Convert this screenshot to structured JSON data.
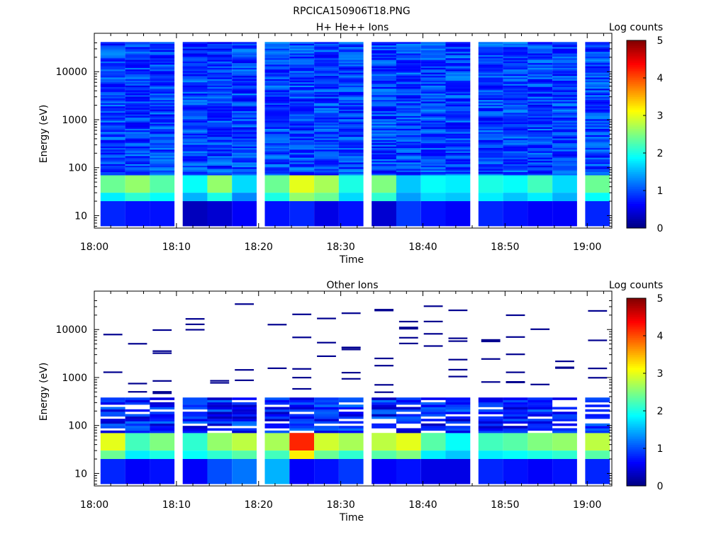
{
  "page_title": "RPCICA150906T18.PNG",
  "chart_data": [
    {
      "type": "heatmap",
      "title": "H+ He++ Ions",
      "xlabel": "Time",
      "ylabel": "Energy (eV)",
      "colorbar_label": "Log counts",
      "yscale": "log",
      "xlim": [
        "18:00",
        "19:03"
      ],
      "ylim": [
        5.5,
        45000
      ],
      "xticks": [
        "18:00",
        "18:10",
        "18:20",
        "18:30",
        "18:40",
        "18:50",
        "19:00"
      ],
      "yticks": [
        "10",
        "100",
        "1000",
        "10000"
      ],
      "colorbar_range": [
        0,
        5
      ],
      "colorbar_ticks": [
        "0",
        "1",
        "2",
        "3",
        "4",
        "5"
      ],
      "time_columns": [
        "18:02",
        "18:05",
        "18:08",
        "18:12",
        "18:15",
        "18:18",
        "18:22",
        "18:25",
        "18:28",
        "18:31",
        "18:35",
        "18:38",
        "18:41",
        "18:44",
        "18:48",
        "18:51",
        "18:54",
        "18:57",
        "19:01"
      ],
      "band_energy_eV": [
        [
          30,
          70
        ],
        [
          20,
          30
        ],
        [
          6,
          20
        ]
      ],
      "low_energy_bands_log_counts": [
        [
          2.4,
          2.6,
          2.3,
          1.9,
          2.6,
          1.7,
          2.4,
          3.0,
          2.7,
          2.0,
          2.5,
          1.6,
          1.9,
          1.8,
          2.0,
          1.9,
          2.2,
          1.7,
          2.4
        ],
        [
          1.8,
          2.1,
          1.9,
          1.5,
          2.0,
          1.3,
          2.0,
          2.6,
          2.4,
          1.7,
          2.1,
          1.4,
          1.7,
          1.6,
          1.8,
          1.6,
          1.8,
          1.5,
          1.9
        ],
        [
          0.8,
          0.7,
          0.7,
          0.3,
          0.4,
          0.6,
          0.7,
          0.8,
          0.5,
          0.7,
          0.4,
          0.9,
          0.7,
          0.6,
          0.8,
          0.7,
          0.6,
          0.6,
          0.8
        ]
      ],
      "background_log_counts": "approx 0.5 to 1.3 above 70 eV"
    },
    {
      "type": "heatmap",
      "title": "Other Ions",
      "xlabel": "Time",
      "ylabel": "Energy (eV)",
      "colorbar_label": "Log counts",
      "yscale": "log",
      "xlim": [
        "18:00",
        "19:03"
      ],
      "ylim": [
        5.5,
        45000
      ],
      "xticks": [
        "18:00",
        "18:10",
        "18:20",
        "18:30",
        "18:40",
        "18:50",
        "19:00"
      ],
      "yticks": [
        "10",
        "100",
        "1000",
        "10000"
      ],
      "colorbar_range": [
        0,
        5
      ],
      "colorbar_ticks": [
        "0",
        "1",
        "2",
        "3",
        "4",
        "5"
      ],
      "time_columns": [
        "18:02",
        "18:05",
        "18:08",
        "18:12",
        "18:15",
        "18:18",
        "18:22",
        "18:25",
        "18:28",
        "18:31",
        "18:35",
        "18:38",
        "18:41",
        "18:44",
        "18:48",
        "18:51",
        "18:54",
        "18:57",
        "19:01"
      ],
      "band_energy_eV": [
        [
          30,
          70
        ],
        [
          20,
          30
        ],
        [
          6,
          20
        ]
      ],
      "low_energy_bands_log_counts": [
        [
          3.0,
          2.2,
          2.5,
          2.1,
          2.6,
          2.8,
          2.7,
          4.2,
          2.9,
          2.7,
          2.8,
          3.0,
          2.3,
          1.9,
          2.2,
          2.3,
          2.5,
          2.6,
          2.8
        ],
        [
          2.4,
          1.8,
          2.0,
          1.9,
          2.1,
          2.3,
          2.2,
          3.2,
          2.4,
          2.1,
          2.3,
          2.5,
          1.8,
          1.6,
          1.8,
          1.9,
          2.0,
          2.1,
          2.3
        ],
        [
          0.8,
          0.6,
          0.7,
          0.6,
          1.0,
          1.2,
          1.5,
          0.6,
          0.7,
          0.9,
          0.6,
          0.7,
          0.5,
          0.5,
          0.8,
          0.7,
          0.6,
          0.7,
          0.8
        ]
      ],
      "background_log_counts": "approx 0.3 to 1.2 between 70 and 400 eV; sparse single counts above"
    }
  ]
}
